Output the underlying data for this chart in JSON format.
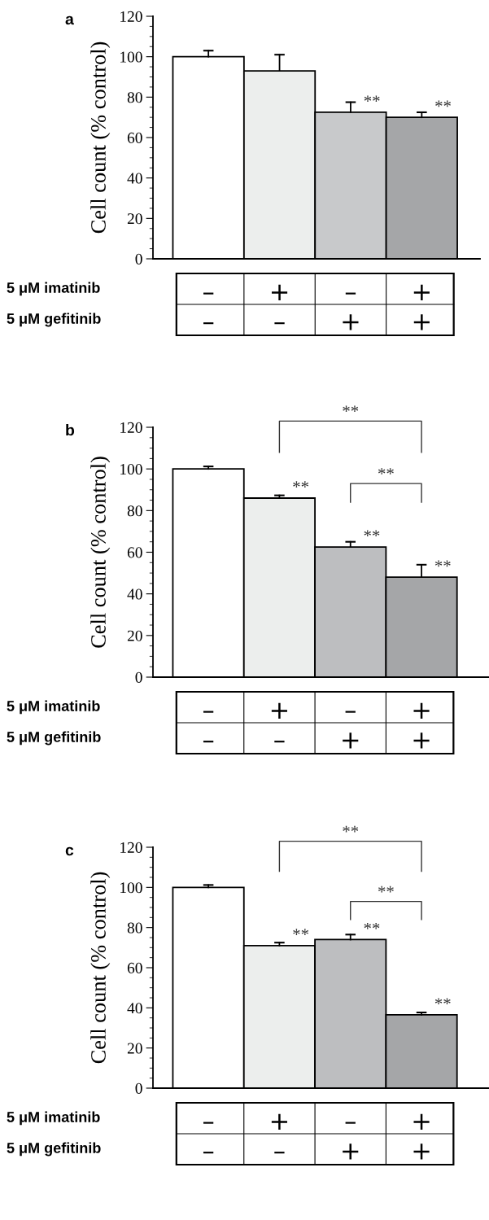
{
  "chart_data": [
    {
      "type": "bar",
      "title": "a",
      "ylabel": "Cell count (% control)",
      "categories": [
        "–\n–",
        "+\n–",
        "–\n+",
        "+\n+"
      ],
      "values": [
        100,
        93,
        72.5,
        70
      ],
      "colors": [
        "#ffffff",
        "#eceeed",
        "#c8c9cb",
        "#a5a6a8"
      ],
      "errors": [
        [
          100,
          103
        ],
        [
          93,
          101
        ],
        [
          72.5,
          77.5
        ],
        [
          70,
          72.5
        ]
      ],
      "value_labels": [
        null,
        null,
        "**",
        "**"
      ],
      "ylim": [
        0,
        120
      ],
      "yticks": [
        0,
        20,
        40,
        60,
        80,
        100,
        120
      ],
      "grid": false,
      "annotations": [
        "5 μM imatinib",
        "5 μM gefitinib"
      ]
    },
    {
      "type": "bar",
      "title": "b",
      "ylabel": "Cell count (% control)",
      "categories": [
        "–\n–",
        "+\n–",
        "–\n+",
        "+\n+"
      ],
      "values": [
        100,
        86,
        62.5,
        48
      ],
      "colors": [
        "#ffffff",
        "#eceeed",
        "#bdbec0",
        "#a5a6a8"
      ],
      "errors": [
        [
          100,
          101.2
        ],
        [
          86,
          87.3
        ],
        [
          62.5,
          65
        ],
        [
          48,
          54
        ]
      ],
      "value_labels": [
        null,
        "**",
        "**",
        "**"
      ],
      "ylim": [
        0,
        120
      ],
      "yticks": [
        0,
        20,
        40,
        60,
        80,
        100,
        120
      ],
      "grid": false,
      "annotations": [
        "5 μM imatinib",
        "5 μM gefitinib",
        "**",
        "**"
      ]
    },
    {
      "type": "bar",
      "title": "c",
      "ylabel": "Cell count (% control)",
      "categories": [
        "–\n–",
        "+\n–",
        "–\n+",
        "+\n+"
      ],
      "values": [
        100,
        71,
        74,
        36.5
      ],
      "colors": [
        "#ffffff",
        "#eceeed",
        "#bdbec0",
        "#a5a6a8"
      ],
      "errors": [
        [
          100,
          101.2
        ],
        [
          71,
          72.5
        ],
        [
          74,
          76.5
        ],
        [
          36.5,
          37.7
        ]
      ],
      "value_labels": [
        null,
        "**",
        "**",
        "**"
      ],
      "ylim": [
        0,
        120
      ],
      "yticks": [
        0,
        20,
        40,
        60,
        80,
        100,
        120
      ],
      "grid": false,
      "annotations": [
        "5 μM imatinib",
        "5 μM gefitinib",
        "**",
        "**"
      ]
    }
  ]
}
